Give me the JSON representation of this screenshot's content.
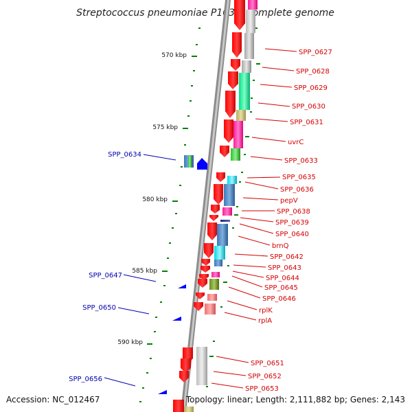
{
  "title": "Streptococcus pneumoniae P1031, complete genome",
  "accession": "Accession: NC_012467",
  "summary": "Topology: linear; Length: 2,111,882 bp; Genes: 2,143",
  "kbp_ticks": [
    "570 kbp",
    "575 kbp",
    "580 kbp",
    "585 kbp",
    "590 kbp"
  ],
  "right_labels": [
    "SPP_0627",
    "SPP_0628",
    "SPP_0629",
    "SPP_0630",
    "SPP_0631",
    "uvrC",
    "SPP_0633",
    "SPP_0635",
    "SPP_0636",
    "pepV",
    "SPP_0638",
    "SPP_0639",
    "SPP_0640",
    "brnQ",
    "SPP_0642",
    "SPP_0643",
    "SPP_0644",
    "SPP_0645",
    "SPP_0646",
    "rplK",
    "rplA",
    "SPP_0651",
    "SPP_0652",
    "SPP_0653"
  ],
  "left_labels": [
    "SPP_0634",
    "SPP_0647",
    "SPP_0650",
    "SPP_0656"
  ],
  "colors": {
    "forward_gene": "#ff0000",
    "reverse_gene": "#0000ff",
    "tick": "#008000",
    "right_label": "#d40000",
    "left_label": "#0000b0"
  }
}
